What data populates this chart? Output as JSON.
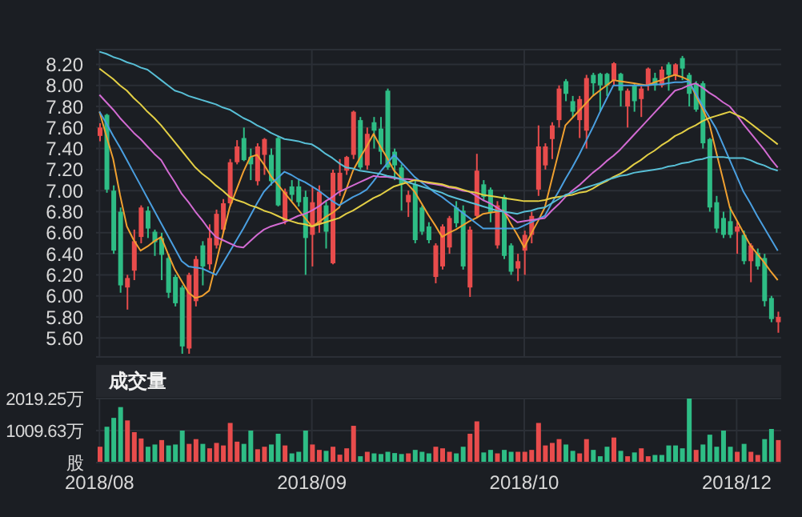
{
  "chart_data": [
    {
      "type": "candlestick",
      "categories": [
        "2018/08",
        null,
        null,
        null,
        null,
        null,
        null,
        null,
        null,
        null,
        null,
        null,
        null,
        null,
        null,
        null,
        null,
        null,
        null,
        null,
        null,
        null,
        null,
        null,
        null,
        null,
        null,
        null,
        null,
        null,
        null,
        "2018/09",
        null,
        null,
        null,
        null,
        null,
        null,
        null,
        null,
        null,
        null,
        null,
        null,
        null,
        null,
        null,
        null,
        null,
        null,
        null,
        null,
        null,
        null,
        null,
        null,
        null,
        null,
        null,
        null,
        null,
        null,
        "2018/10",
        null,
        null,
        null,
        null,
        null,
        null,
        null,
        null,
        null,
        null,
        null,
        null,
        null,
        null,
        null,
        null,
        null,
        null,
        null,
        null,
        null,
        null,
        null,
        null,
        null,
        null,
        null,
        null,
        null,
        null,
        "2018/12",
        null,
        null,
        null,
        null,
        null,
        null
      ],
      "ohlc": [
        [
          7.52,
          7.64,
          7.47,
          7.6
        ],
        [
          7.72,
          7.73,
          6.98,
          7.01
        ],
        [
          7.0,
          7.05,
          6.4,
          6.43
        ],
        [
          6.8,
          6.84,
          6.03,
          6.1
        ],
        [
          6.08,
          6.2,
          5.87,
          6.17
        ],
        [
          6.24,
          6.63,
          6.15,
          6.52
        ],
        [
          6.56,
          6.86,
          6.5,
          6.84
        ],
        [
          6.81,
          6.85,
          6.55,
          6.64
        ],
        [
          6.61,
          6.63,
          6.38,
          6.51
        ],
        [
          6.55,
          6.6,
          6.15,
          6.39
        ],
        [
          6.36,
          6.4,
          5.98,
          6.03
        ],
        [
          6.18,
          6.2,
          5.9,
          5.93
        ],
        [
          6.08,
          6.1,
          5.45,
          5.52
        ],
        [
          5.5,
          6.22,
          5.45,
          6.2
        ],
        [
          5.95,
          6.38,
          5.9,
          6.35
        ],
        [
          6.48,
          6.52,
          6.1,
          6.28
        ],
        [
          6.3,
          6.68,
          6.25,
          6.55
        ],
        [
          6.48,
          6.82,
          6.45,
          6.78
        ],
        [
          6.63,
          6.92,
          6.6,
          6.88
        ],
        [
          6.88,
          7.3,
          6.85,
          7.27
        ],
        [
          7.27,
          7.48,
          7.25,
          7.42
        ],
        [
          7.5,
          7.6,
          7.28,
          7.29
        ],
        [
          7.32,
          7.4,
          7.1,
          7.25
        ],
        [
          7.09,
          7.45,
          7.05,
          7.42
        ],
        [
          7.34,
          7.5,
          7.15,
          7.49
        ],
        [
          7.34,
          7.4,
          7.05,
          7.09
        ],
        [
          7.5,
          7.52,
          6.85,
          6.86
        ],
        [
          6.71,
          7.02,
          6.68,
          6.99
        ],
        [
          7.04,
          7.1,
          6.9,
          6.96
        ],
        [
          7.04,
          7.1,
          6.85,
          6.89
        ],
        [
          6.94,
          7.0,
          6.2,
          6.55
        ],
        [
          6.58,
          7.04,
          6.28,
          6.89
        ],
        [
          6.68,
          7.05,
          6.6,
          6.99
        ],
        [
          6.86,
          6.9,
          6.45,
          6.61
        ],
        [
          6.31,
          7.2,
          6.3,
          7.17
        ],
        [
          7.0,
          7.3,
          6.95,
          7.17
        ],
        [
          7.19,
          7.33,
          7.15,
          7.32
        ],
        [
          7.34,
          7.76,
          7.3,
          7.75
        ],
        [
          7.67,
          7.7,
          7.2,
          7.22
        ],
        [
          7.24,
          7.6,
          7.2,
          7.54
        ],
        [
          7.65,
          7.7,
          7.4,
          7.57
        ],
        [
          7.59,
          7.7,
          7.25,
          7.37
        ],
        [
          7.95,
          7.97,
          7.2,
          7.22
        ],
        [
          7.37,
          7.4,
          7.1,
          7.24
        ],
        [
          7.22,
          7.25,
          6.81,
          7.06
        ],
        [
          6.89,
          7.0,
          6.75,
          6.96
        ],
        [
          7.06,
          7.1,
          6.5,
          6.53
        ],
        [
          6.84,
          6.86,
          6.58,
          6.61
        ],
        [
          6.66,
          6.7,
          6.5,
          6.53
        ],
        [
          6.18,
          6.5,
          6.12,
          6.48
        ],
        [
          6.28,
          6.68,
          6.25,
          6.66
        ],
        [
          6.46,
          6.76,
          6.4,
          6.74
        ],
        [
          6.84,
          6.9,
          6.65,
          6.69
        ],
        [
          6.81,
          6.86,
          6.25,
          6.28
        ],
        [
          6.08,
          6.66,
          5.99,
          6.63
        ],
        [
          6.76,
          7.35,
          6.74,
          7.19
        ],
        [
          7.06,
          7.1,
          6.9,
          6.94
        ],
        [
          7.01,
          7.03,
          6.7,
          6.79
        ],
        [
          6.48,
          6.9,
          6.45,
          6.86
        ],
        [
          6.94,
          6.96,
          6.35,
          6.38
        ],
        [
          6.48,
          6.5,
          6.2,
          6.23
        ],
        [
          6.26,
          6.4,
          6.14,
          6.33
        ],
        [
          6.43,
          6.62,
          6.2,
          6.58
        ],
        [
          6.58,
          6.8,
          6.5,
          6.76
        ],
        [
          7.01,
          7.62,
          6.95,
          7.42
        ],
        [
          7.24,
          7.45,
          7.2,
          7.42
        ],
        [
          7.49,
          7.65,
          7.3,
          7.62
        ],
        [
          7.67,
          8.0,
          7.6,
          7.97
        ],
        [
          8.04,
          8.06,
          7.85,
          7.92
        ],
        [
          7.85,
          7.9,
          7.7,
          7.75
        ],
        [
          7.67,
          7.9,
          7.5,
          7.87
        ],
        [
          7.57,
          8.1,
          7.4,
          8.07
        ],
        [
          8.1,
          8.12,
          7.9,
          8.02
        ],
        [
          8.11,
          8.12,
          7.75,
          8.0
        ],
        [
          8.11,
          8.12,
          7.9,
          8.0
        ],
        [
          8.05,
          8.22,
          8.0,
          8.21
        ],
        [
          8.11,
          8.12,
          7.8,
          7.95
        ],
        [
          7.8,
          7.97,
          7.6,
          7.95
        ],
        [
          8.0,
          8.02,
          7.75,
          7.85
        ],
        [
          7.87,
          7.99,
          7.7,
          7.97
        ],
        [
          8.0,
          8.17,
          7.95,
          8.16
        ],
        [
          8.07,
          8.12,
          7.95,
          8.0
        ],
        [
          8.0,
          8.18,
          7.98,
          8.15
        ],
        [
          8.2,
          8.22,
          7.95,
          8.1
        ],
        [
          8.1,
          8.21,
          8.05,
          8.2
        ],
        [
          8.26,
          8.28,
          8.05,
          8.16
        ],
        [
          8.1,
          8.12,
          7.8,
          7.92
        ],
        [
          8.02,
          8.04,
          7.75,
          7.77
        ],
        [
          8.02,
          8.04,
          7.4,
          7.45
        ],
        [
          7.49,
          7.5,
          6.8,
          6.84
        ],
        [
          6.89,
          6.95,
          6.6,
          6.64
        ],
        [
          6.74,
          6.8,
          6.55,
          6.58
        ],
        [
          6.71,
          6.85,
          6.55,
          6.58
        ],
        [
          6.61,
          6.7,
          6.4,
          6.66
        ],
        [
          6.58,
          6.62,
          6.3,
          6.33
        ],
        [
          6.33,
          6.5,
          6.13,
          6.48
        ],
        [
          6.41,
          6.45,
          6.25,
          6.28
        ],
        [
          6.36,
          6.4,
          5.9,
          5.95
        ],
        [
          5.98,
          6.0,
          5.75,
          5.78
        ],
        [
          5.75,
          5.85,
          5.65,
          5.8
        ]
      ],
      "colors": [
        "#e84c4c",
        "#2ebd85",
        "#2ebd85",
        "#2ebd85",
        "#e84c4c",
        "#e84c4c",
        "#e84c4c",
        "#2ebd85",
        "#2ebd85",
        "#2ebd85",
        "#2ebd85",
        "#2ebd85",
        "#2ebd85",
        "#e84c4c",
        "#e84c4c",
        "#2ebd85",
        "#e84c4c",
        "#e84c4c",
        "#e84c4c",
        "#e84c4c",
        "#e84c4c",
        "#2ebd85",
        "#2ebd85",
        "#e84c4c",
        "#e84c4c",
        "#2ebd85",
        "#2ebd85",
        "#e84c4c",
        "#2ebd85",
        "#2ebd85",
        "#2ebd85",
        "#e84c4c",
        "#e84c4c",
        "#2ebd85",
        "#e84c4c",
        "#e84c4c",
        "#e84c4c",
        "#e84c4c",
        "#2ebd85",
        "#e84c4c",
        "#2ebd85",
        "#2ebd85",
        "#2ebd85",
        "#2ebd85",
        "#2ebd85",
        "#e84c4c",
        "#2ebd85",
        "#2ebd85",
        "#2ebd85",
        "#e84c4c",
        "#e84c4c",
        "#e84c4c",
        "#2ebd85",
        "#2ebd85",
        "#e84c4c",
        "#e84c4c",
        "#2ebd85",
        "#2ebd85",
        "#e84c4c",
        "#2ebd85",
        "#2ebd85",
        "#e84c4c",
        "#e84c4c",
        "#e84c4c",
        "#e84c4c",
        "#e84c4c",
        "#e84c4c",
        "#e84c4c",
        "#2ebd85",
        "#2ebd85",
        "#e84c4c",
        "#e84c4c",
        "#2ebd85",
        "#2ebd85",
        "#2ebd85",
        "#e84c4c",
        "#2ebd85",
        "#e84c4c",
        "#2ebd85",
        "#e84c4c",
        "#e84c4c",
        "#2ebd85",
        "#e84c4c",
        "#2ebd85",
        "#e84c4c",
        "#2ebd85",
        "#2ebd85",
        "#2ebd85",
        "#2ebd85",
        "#2ebd85",
        "#2ebd85",
        "#2ebd85",
        "#2ebd85",
        "#e84c4c",
        "#2ebd85",
        "#e84c4c",
        "#2ebd85",
        "#2ebd85",
        "#2ebd85",
        "#e84c4c"
      ],
      "series": [
        {
          "type": "line",
          "color": "#f0a030",
          "values": [
            7.75,
            7.52,
            7.3,
            6.96,
            6.66,
            6.53,
            6.43,
            6.47,
            6.52,
            6.56,
            6.4,
            6.25,
            6.14,
            6.03,
            5.98,
            6.0,
            6.05,
            6.31,
            6.58,
            6.84,
            7.01,
            7.18,
            7.32,
            7.34,
            7.25,
            7.14,
            7.06,
            6.98,
            6.9,
            6.82,
            6.74,
            6.66,
            6.7,
            6.75,
            6.79,
            6.84,
            7.01,
            7.19,
            7.31,
            7.42,
            7.54,
            7.42,
            7.31,
            7.19,
            7.12,
            7.06,
            6.99,
            6.88,
            6.77,
            6.67,
            6.56,
            6.6,
            6.63,
            6.67,
            6.71,
            6.74,
            6.78,
            6.79,
            6.8,
            6.81,
            6.69,
            6.58,
            6.46,
            6.59,
            6.71,
            6.84,
            7.1,
            7.36,
            7.62,
            7.69,
            7.76,
            7.83,
            7.9,
            7.95,
            8.0,
            8.05,
            8.04,
            8.03,
            8.02,
            8.01,
            8.0,
            8.03,
            8.05,
            8.08,
            8.1,
            8.08,
            8.05,
            7.91,
            7.78,
            7.64,
            7.37,
            7.11,
            6.84,
            6.72,
            6.6,
            6.48,
            6.4,
            6.32,
            6.23,
            6.15
          ]
        },
        {
          "type": "line",
          "color": "#4a9fe0",
          "values": [
            7.75,
            7.64,
            7.52,
            7.41,
            7.29,
            7.17,
            7.05,
            6.93,
            6.81,
            6.69,
            6.57,
            6.45,
            6.33,
            6.28,
            6.27,
            6.26,
            6.23,
            6.2,
            6.31,
            6.42,
            6.53,
            6.64,
            6.76,
            6.88,
            6.99,
            7.06,
            7.12,
            7.18,
            7.15,
            7.11,
            7.08,
            7.04,
            7.0,
            6.95,
            6.9,
            6.86,
            6.9,
            6.94,
            6.97,
            7.01,
            7.09,
            7.18,
            7.26,
            7.34,
            7.27,
            7.2,
            7.13,
            7.08,
            7.03,
            6.98,
            6.94,
            6.89,
            6.84,
            6.79,
            6.74,
            6.69,
            6.64,
            6.64,
            6.64,
            6.64,
            6.64,
            6.64,
            6.67,
            6.7,
            6.73,
            6.76,
            6.88,
            6.99,
            7.11,
            7.22,
            7.34,
            7.47,
            7.6,
            7.74,
            7.87,
            8.0,
            8.0,
            8.0,
            8.0,
            8.0,
            8.0,
            8.01,
            8.01,
            8.02,
            8.03,
            8.03,
            8.04,
            7.93,
            7.81,
            7.7,
            7.59,
            7.44,
            7.29,
            7.14,
            6.99,
            6.88,
            6.76,
            6.65,
            6.54,
            6.43
          ]
        },
        {
          "type": "line",
          "color": "#d36bd3",
          "values": [
            7.91,
            7.84,
            7.77,
            7.69,
            7.62,
            7.55,
            7.49,
            7.42,
            7.35,
            7.29,
            7.18,
            7.08,
            6.97,
            6.89,
            6.8,
            6.72,
            6.63,
            6.56,
            6.53,
            6.5,
            6.47,
            6.46,
            6.52,
            6.58,
            6.63,
            6.66,
            6.68,
            6.7,
            6.73,
            6.76,
            6.78,
            6.81,
            6.85,
            6.9,
            6.94,
            6.99,
            7.02,
            7.05,
            7.08,
            7.11,
            7.14,
            7.13,
            7.13,
            7.12,
            7.11,
            7.11,
            7.1,
            7.09,
            7.07,
            7.06,
            7.05,
            7.03,
            7.02,
            7.0,
            6.99,
            6.95,
            6.91,
            6.88,
            6.84,
            6.8,
            6.75,
            6.7,
            6.71,
            6.72,
            6.73,
            6.74,
            6.81,
            6.87,
            6.94,
            7.0,
            7.05,
            7.11,
            7.17,
            7.22,
            7.28,
            7.33,
            7.39,
            7.46,
            7.53,
            7.6,
            7.67,
            7.74,
            7.81,
            7.88,
            7.95,
            7.97,
            8.0,
            8.02,
            7.98,
            7.93,
            7.89,
            7.84,
            7.8,
            7.72,
            7.63,
            7.55,
            7.47,
            7.39,
            7.3,
            7.22
          ]
        },
        {
          "type": "line",
          "color": "#e3cf45",
          "values": [
            8.16,
            8.11,
            8.06,
            8.0,
            7.95,
            7.88,
            7.82,
            7.75,
            7.69,
            7.62,
            7.54,
            7.46,
            7.38,
            7.3,
            7.22,
            7.16,
            7.11,
            7.05,
            7.0,
            6.94,
            6.91,
            6.89,
            6.86,
            6.84,
            6.81,
            6.79,
            6.76,
            6.73,
            6.71,
            6.69,
            6.68,
            6.66,
            6.68,
            6.7,
            6.72,
            6.74,
            6.78,
            6.81,
            6.85,
            6.89,
            6.93,
            6.96,
            7.0,
            7.04,
            7.06,
            7.08,
            7.1,
            7.09,
            7.08,
            7.07,
            7.06,
            7.04,
            7.03,
            7.01,
            6.99,
            6.98,
            6.96,
            6.95,
            6.94,
            6.93,
            6.92,
            6.91,
            6.9,
            6.9,
            6.9,
            6.91,
            6.93,
            6.94,
            6.95,
            6.96,
            6.98,
            6.99,
            7.02,
            7.06,
            7.09,
            7.13,
            7.16,
            7.2,
            7.25,
            7.29,
            7.34,
            7.38,
            7.43,
            7.47,
            7.52,
            7.55,
            7.59,
            7.62,
            7.66,
            7.69,
            7.71,
            7.73,
            7.75,
            7.72,
            7.69,
            7.64,
            7.59,
            7.54,
            7.49,
            7.44
          ]
        },
        {
          "type": "line",
          "color": "#58bfd6",
          "values": [
            8.32,
            8.3,
            8.27,
            8.25,
            8.22,
            8.2,
            8.17,
            8.15,
            8.1,
            8.05,
            8.0,
            7.95,
            7.93,
            7.9,
            7.88,
            7.86,
            7.84,
            7.82,
            7.79,
            7.77,
            7.73,
            7.69,
            7.66,
            7.62,
            7.59,
            7.55,
            7.52,
            7.49,
            7.48,
            7.47,
            7.45,
            7.44,
            7.4,
            7.35,
            7.31,
            7.26,
            7.22,
            7.21,
            7.19,
            7.18,
            7.17,
            7.16,
            7.14,
            7.13,
            7.11,
            7.08,
            7.06,
            7.04,
            7.02,
            7.0,
            6.98,
            6.95,
            6.93,
            6.91,
            6.89,
            6.87,
            6.85,
            6.83,
            6.81,
            6.8,
            6.79,
            6.78,
            6.8,
            6.81,
            6.83,
            6.84,
            6.88,
            6.92,
            6.96,
            6.98,
            7.01,
            7.03,
            7.05,
            7.07,
            7.1,
            7.12,
            7.14,
            7.15,
            7.17,
            7.18,
            7.19,
            7.2,
            7.21,
            7.23,
            7.24,
            7.26,
            7.27,
            7.29,
            7.3,
            7.32,
            7.32,
            7.32,
            7.31,
            7.31,
            7.31,
            7.29,
            7.26,
            7.24,
            7.21,
            7.19
          ]
        }
      ],
      "ylim": [
        5.42,
        8.34
      ],
      "yticks": [
        {
          "value": 5.6,
          "label": "5.60"
        },
        {
          "value": 5.8,
          "label": "5.80"
        },
        {
          "value": 6,
          "label": "6.00"
        },
        {
          "value": 6.2,
          "label": "6.20"
        },
        {
          "value": 6.4,
          "label": "6.40"
        },
        {
          "value": 6.6,
          "label": "6.60"
        },
        {
          "value": 6.8,
          "label": "6.80"
        },
        {
          "value": 7,
          "label": "7.00"
        },
        {
          "value": 7.2,
          "label": "7.20"
        },
        {
          "value": 7.4,
          "label": "7.40"
        },
        {
          "value": 7.6,
          "label": "7.60"
        },
        {
          "value": 7.8,
          "label": "7.80"
        },
        {
          "value": 8,
          "label": "8.00"
        },
        {
          "value": 8.2,
          "label": "8.20"
        }
      ],
      "grid": true,
      "tick_labels": "y",
      "marker": "none"
    },
    {
      "type": "bar",
      "title": "成交量",
      "categories": [
        "2018/08",
        null,
        null,
        null,
        null,
        null,
        null,
        null,
        null,
        null,
        null,
        null,
        null,
        null,
        null,
        null,
        null,
        null,
        null,
        null,
        null,
        null,
        null,
        null,
        null,
        null,
        null,
        null,
        null,
        null,
        null,
        "2018/09",
        null,
        null,
        null,
        null,
        null,
        null,
        null,
        null,
        null,
        null,
        null,
        null,
        null,
        null,
        null,
        null,
        null,
        null,
        null,
        null,
        null,
        null,
        null,
        null,
        null,
        null,
        null,
        null,
        null,
        null,
        "2018/10",
        null,
        null,
        null,
        null,
        null,
        null,
        null,
        null,
        null,
        null,
        null,
        null,
        null,
        null,
        null,
        null,
        null,
        null,
        null,
        null,
        null,
        null,
        null,
        null,
        null,
        null,
        null,
        null,
        null,
        null,
        "2018/12",
        null,
        null,
        null,
        null,
        null,
        null
      ],
      "values": [
        500,
        1130,
        1410,
        1750,
        1330,
        960,
        760,
        500,
        570,
        710,
        540,
        570,
        1010,
        590,
        740,
        590,
        450,
        620,
        540,
        1250,
        660,
        590,
        1010,
        420,
        500,
        570,
        910,
        540,
        290,
        340,
        1010,
        570,
        400,
        370,
        500,
        250,
        450,
        1160,
        200,
        340,
        290,
        270,
        340,
        300,
        270,
        290,
        400,
        340,
        290,
        500,
        450,
        340,
        290,
        500,
        910,
        1300,
        320,
        400,
        290,
        400,
        340,
        340,
        340,
        400,
        1250,
        540,
        620,
        740,
        570,
        370,
        290,
        740,
        400,
        200,
        500,
        790,
        370,
        200,
        320,
        450,
        200,
        240,
        240,
        540,
        540,
        450,
        2019.25,
        400,
        570,
        880,
        500,
        1010,
        500,
        340,
        590,
        340,
        240,
        740,
        1060,
        710
      ],
      "colors": [
        "#e84c4c",
        "#2ebd85",
        "#2ebd85",
        "#2ebd85",
        "#e84c4c",
        "#e84c4c",
        "#e84c4c",
        "#2ebd85",
        "#2ebd85",
        "#e84c4c",
        "#2ebd85",
        "#2ebd85",
        "#2ebd85",
        "#e84c4c",
        "#e84c4c",
        "#2ebd85",
        "#e84c4c",
        "#e84c4c",
        "#e84c4c",
        "#e84c4c",
        "#e84c4c",
        "#2ebd85",
        "#2ebd85",
        "#e84c4c",
        "#e84c4c",
        "#2ebd85",
        "#2ebd85",
        "#e84c4c",
        "#2ebd85",
        "#2ebd85",
        "#2ebd85",
        "#e84c4c",
        "#e84c4c",
        "#2ebd85",
        "#e84c4c",
        "#e84c4c",
        "#e84c4c",
        "#e84c4c",
        "#2ebd85",
        "#e84c4c",
        "#2ebd85",
        "#2ebd85",
        "#2ebd85",
        "#2ebd85",
        "#2ebd85",
        "#e84c4c",
        "#2ebd85",
        "#2ebd85",
        "#2ebd85",
        "#e84c4c",
        "#e84c4c",
        "#e84c4c",
        "#2ebd85",
        "#2ebd85",
        "#e84c4c",
        "#e84c4c",
        "#2ebd85",
        "#2ebd85",
        "#e84c4c",
        "#2ebd85",
        "#2ebd85",
        "#e84c4c",
        "#e84c4c",
        "#e84c4c",
        "#e84c4c",
        "#e84c4c",
        "#e84c4c",
        "#e84c4c",
        "#2ebd85",
        "#2ebd85",
        "#e84c4c",
        "#e84c4c",
        "#2ebd85",
        "#2ebd85",
        "#2ebd85",
        "#e84c4c",
        "#2ebd85",
        "#e84c4c",
        "#2ebd85",
        "#e84c4c",
        "#e84c4c",
        "#2ebd85",
        "#2ebd85",
        "#2ebd85",
        "#2ebd85",
        "#2ebd85",
        "#2ebd85",
        "#e84c4c",
        "#2ebd85",
        "#2ebd85",
        "#2ebd85",
        "#2ebd85",
        "#2ebd85",
        "#e84c4c",
        "#2ebd85",
        "#e84c4c",
        "#e84c4c",
        "#2ebd85",
        "#2ebd85",
        "#e84c4c"
      ],
      "ylim": [
        0,
        2019.25
      ],
      "yticks": [
        {
          "value": 0,
          "label": "股"
        },
        {
          "value": 1009.63,
          "label": "1009.63万"
        },
        {
          "value": 2019.25,
          "label": "2019.25万"
        }
      ],
      "grid": true
    }
  ]
}
